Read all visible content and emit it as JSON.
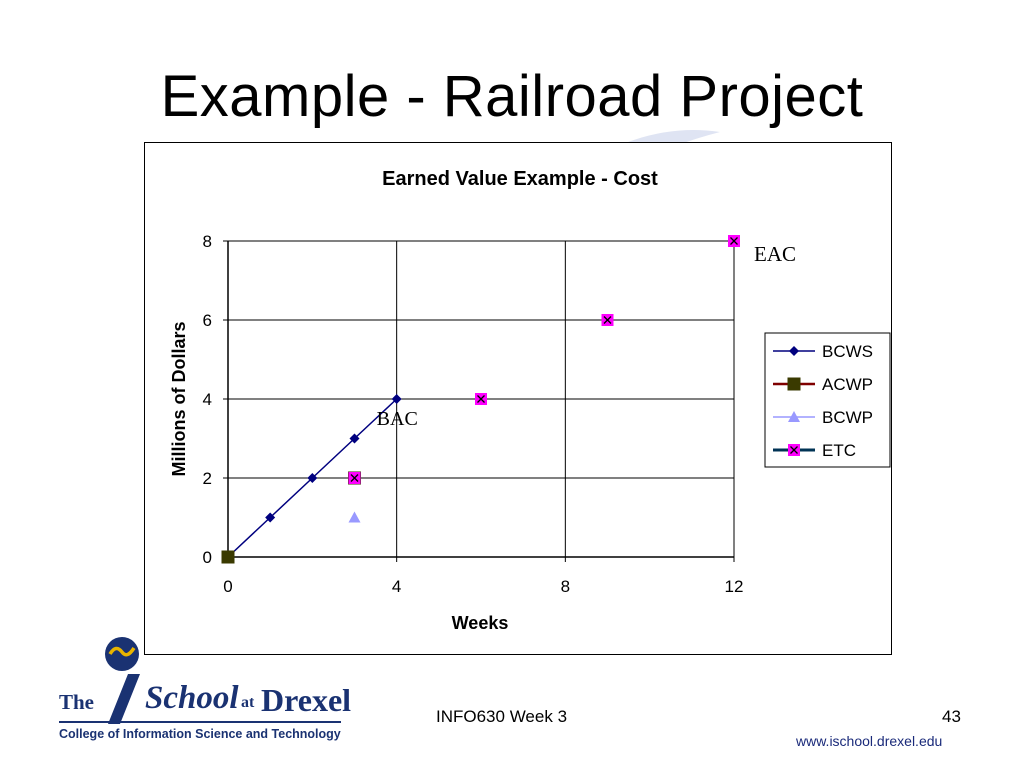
{
  "slide": {
    "title": "Example - Railroad Project",
    "footer_course": "INFO630 Week 3",
    "page_number": "43",
    "url": "www.ischool.drexel.edu"
  },
  "logo": {
    "the": "The",
    "school": "School",
    "at": "at",
    "drexel": "Drexel",
    "college": "College of Information Science and Technology"
  },
  "colors": {
    "bcws": "#00007f",
    "acwp": "#3a3a00",
    "acwp_line": "#7f0000",
    "bcwp": "#9999ff",
    "etc": "#ff00ff",
    "etc_line": "#003355",
    "logo_blue": "#1a3272"
  },
  "chart_data": {
    "type": "scatter",
    "title": "Earned Value Example - Cost",
    "xlabel": "Weeks",
    "ylabel": "Millions of Dollars",
    "xlim": [
      0,
      12
    ],
    "ylim": [
      0,
      8
    ],
    "xticks": [
      0,
      4,
      8,
      12
    ],
    "yticks": [
      0,
      2,
      4,
      6,
      8
    ],
    "grid": true,
    "legend": "right",
    "series": [
      {
        "name": "BCWS",
        "marker": "diamond",
        "line": true,
        "x": [
          0,
          1,
          2,
          3,
          4
        ],
        "y": [
          0,
          1,
          2,
          3,
          4
        ]
      },
      {
        "name": "ACWP",
        "marker": "square",
        "line": true,
        "x": [
          0,
          3
        ],
        "y": [
          0,
          2
        ]
      },
      {
        "name": "BCWP",
        "marker": "triangle",
        "line": true,
        "x": [
          0,
          3
        ],
        "y": [
          0,
          1
        ]
      },
      {
        "name": "ETC",
        "marker": "x-square",
        "line": true,
        "x": [
          3,
          6,
          9,
          12
        ],
        "y": [
          2,
          4,
          6,
          8
        ]
      }
    ],
    "annotations": [
      {
        "text": "BAC",
        "x": 4,
        "y": 4
      },
      {
        "text": "EAC",
        "x": 12,
        "y": 8
      }
    ]
  }
}
